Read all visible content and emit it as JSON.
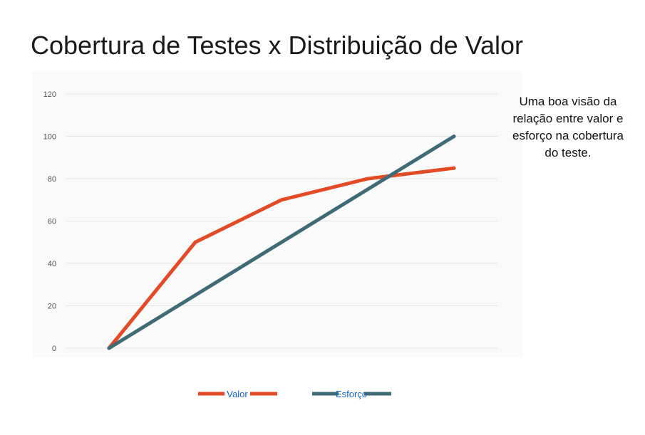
{
  "slide": {
    "title": "Cobertura de Testes x Distribuição de Valor",
    "note": "Uma boa visão da relação entre valor e esforço na cobertura do teste."
  },
  "chart_data": {
    "type": "line",
    "x": [
      0,
      1,
      2,
      3,
      4
    ],
    "ylim": [
      0,
      120
    ],
    "yticks": [
      0,
      20,
      40,
      60,
      80,
      100,
      120
    ],
    "grid": true,
    "legend_position": "bottom",
    "series": [
      {
        "name": "Valor",
        "color": "#e24b26",
        "values": [
          0,
          50,
          70,
          80,
          85
        ]
      },
      {
        "name": "Esforço",
        "color": "#3f6b76",
        "values": [
          0,
          25,
          50,
          75,
          100
        ]
      }
    ]
  }
}
